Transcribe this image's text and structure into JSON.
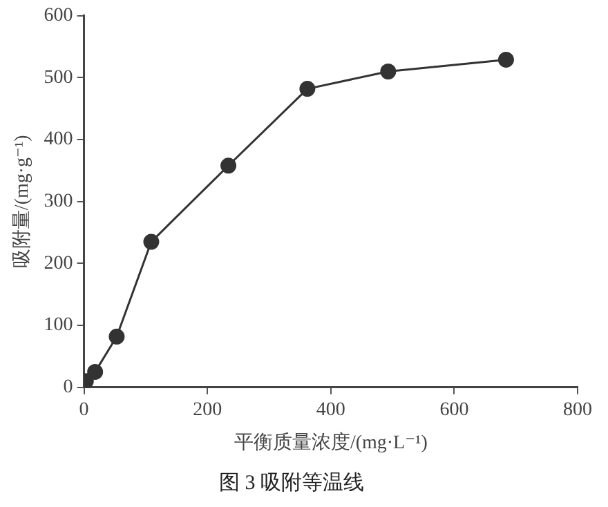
{
  "chart_data": {
    "type": "line",
    "title": "图 3 吸附等温线",
    "xlabel": "平衡质量浓度/(mg·L⁻¹)",
    "ylabel": "吸附量/(mg·g⁻¹)",
    "x": [
      3,
      18,
      53,
      109,
      234,
      362,
      493,
      684
    ],
    "series": [
      {
        "color": "#333333",
        "values": [
          10,
          25,
          82,
          235,
          358,
          482,
          510,
          529
        ]
      }
    ],
    "xlim": [
      0,
      800
    ],
    "xticks": [
      0,
      200,
      400,
      600,
      800
    ],
    "ylim": [
      0,
      600
    ],
    "yticks": [
      0,
      100,
      200,
      300,
      400,
      500,
      600
    ],
    "grid": false,
    "legend": false,
    "marker": "circle",
    "line_style": "solid"
  }
}
